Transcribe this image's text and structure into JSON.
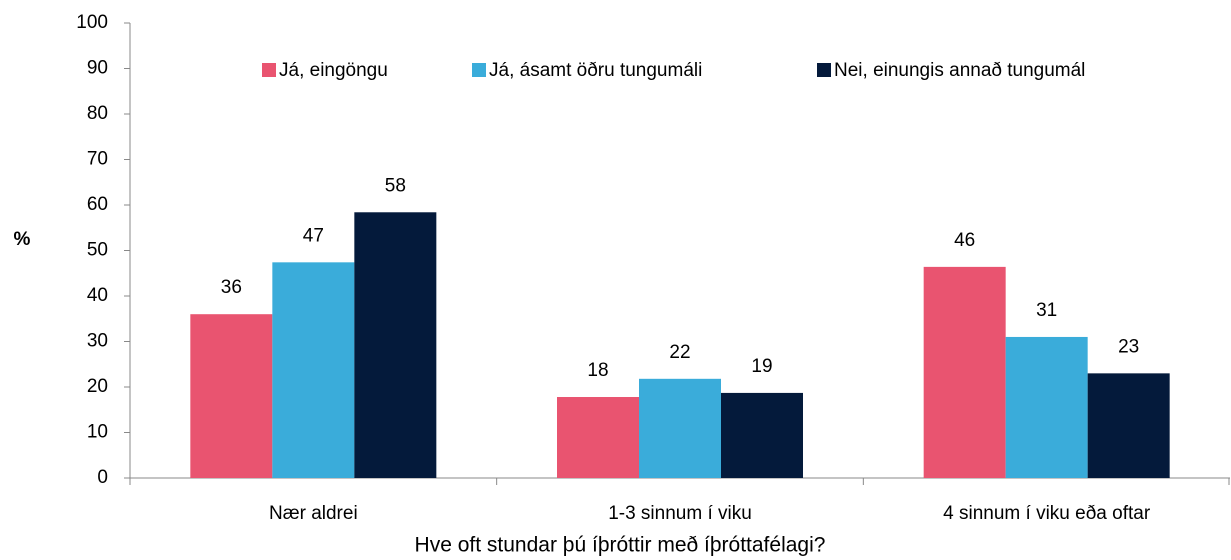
{
  "chart_data": {
    "type": "bar",
    "x_label": "Hve oft stundar þú íþróttir með íþróttafélagi?",
    "y_label": "%",
    "categories": [
      "Nær aldrei",
      "1-3 sinnum í viku",
      "4 sinnum í viku eða oftar"
    ],
    "series": [
      {
        "name": "Já, eingöngu",
        "color": "#e95470",
        "values": [
          36,
          17.8,
          46.4
        ],
        "value_labels": [
          "36",
          "18",
          "46"
        ]
      },
      {
        "name": "Já, ásamt öðru tungumáli",
        "color": "#3aacda",
        "values": [
          47.4,
          21.8,
          31
        ],
        "value_labels": [
          "47",
          "22",
          "31"
        ]
      },
      {
        "name": "Nei, einungis annað tungumál",
        "color": "#041a3b",
        "values": [
          58.4,
          18.7,
          23
        ],
        "value_labels": [
          "58",
          "19",
          "23"
        ]
      }
    ],
    "ylim": [
      0,
      100
    ],
    "yticks": [
      0,
      10,
      20,
      30,
      40,
      50,
      60,
      70,
      80,
      90,
      100
    ],
    "grid": false,
    "legend": "top"
  }
}
